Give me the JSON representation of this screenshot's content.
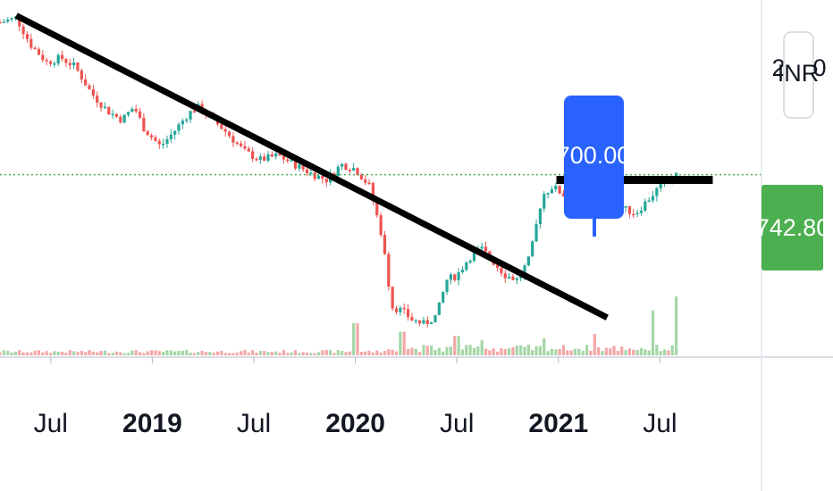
{
  "chart_data": {
    "type": "candlestick",
    "currency": "INR",
    "last_price": "742.80",
    "annotation_label": "700.00",
    "axis_label_partial_left": "2",
    "axis_label_partial_right": "0",
    "x_ticks": [
      {
        "label": "Jul",
        "t": 2018.5,
        "major": false
      },
      {
        "label": "2019",
        "t": 2019.0,
        "major": true
      },
      {
        "label": "Jul",
        "t": 2019.5,
        "major": false
      },
      {
        "label": "2020",
        "t": 2020.0,
        "major": true
      },
      {
        "label": "Jul",
        "t": 2020.5,
        "major": false
      },
      {
        "label": "2021",
        "t": 2021.0,
        "major": true
      },
      {
        "label": "Jul",
        "t": 2021.5,
        "major": false
      }
    ],
    "x_range": [
      2018.25,
      2022.0
    ],
    "y_range": [
      340,
      1120
    ],
    "price_path": [
      [
        2018.25,
        1090
      ],
      [
        2018.33,
        1100
      ],
      [
        2018.4,
        1040
      ],
      [
        2018.48,
        1000
      ],
      [
        2018.55,
        1010
      ],
      [
        2018.62,
        990
      ],
      [
        2018.7,
        930
      ],
      [
        2018.78,
        890
      ],
      [
        2018.85,
        870
      ],
      [
        2018.91,
        900
      ],
      [
        2018.96,
        850
      ],
      [
        2019.04,
        810
      ],
      [
        2019.1,
        840
      ],
      [
        2019.17,
        880
      ],
      [
        2019.22,
        900
      ],
      [
        2019.3,
        870
      ],
      [
        2019.37,
        840
      ],
      [
        2019.45,
        800
      ],
      [
        2019.53,
        780
      ],
      [
        2019.62,
        790
      ],
      [
        2019.7,
        770
      ],
      [
        2019.78,
        750
      ],
      [
        2019.86,
        735
      ],
      [
        2019.93,
        770
      ],
      [
        2020.0,
        760
      ],
      [
        2020.07,
        720
      ],
      [
        2020.13,
        610
      ],
      [
        2020.18,
        450
      ],
      [
        2020.23,
        440
      ],
      [
        2020.28,
        420
      ],
      [
        2020.34,
        410
      ],
      [
        2020.4,
        430
      ],
      [
        2020.45,
        510
      ],
      [
        2020.5,
        520
      ],
      [
        2020.56,
        560
      ],
      [
        2020.62,
        580
      ],
      [
        2020.68,
        550
      ],
      [
        2020.74,
        520
      ],
      [
        2020.8,
        510
      ],
      [
        2020.86,
        560
      ],
      [
        2020.92,
        700
      ],
      [
        2020.97,
        720
      ],
      [
        2021.03,
        700
      ],
      [
        2021.08,
        690
      ],
      [
        2021.14,
        710
      ],
      [
        2021.2,
        700
      ],
      [
        2021.26,
        690
      ],
      [
        2021.32,
        670
      ],
      [
        2021.38,
        660
      ],
      [
        2021.44,
        690
      ],
      [
        2021.5,
        720
      ],
      [
        2021.55,
        730
      ],
      [
        2021.58,
        742.8
      ]
    ],
    "trendlines": [
      {
        "from": [
          2018.33,
          1105
        ],
        "to": [
          2021.24,
          425
        ],
        "style": "descending-resistance"
      },
      {
        "from": [
          2020.99,
          735
        ],
        "to": [
          2021.76,
          735
        ],
        "style": "horizontal-resistance"
      }
    ],
    "volume_spikes": [
      {
        "t": 2020.0,
        "v": 0.3
      },
      {
        "t": 2020.23,
        "v": 0.22
      },
      {
        "t": 2020.5,
        "v": 0.18
      },
      {
        "t": 2020.63,
        "v": 0.14
      },
      {
        "t": 2020.93,
        "v": 0.16
      },
      {
        "t": 2021.18,
        "v": 0.2
      },
      {
        "t": 2021.46,
        "v": 0.42
      },
      {
        "t": 2021.58,
        "v": 0.55
      }
    ],
    "colors": {
      "up": "#26a69a",
      "down": "#ef5350",
      "up_volume": "#a5d6a7",
      "down_volume": "#f4a7a7",
      "trendline": "#000000",
      "price_label_bg": "#4caf50",
      "annotation_bg": "#2962ff",
      "last_price_line": "#4caf50"
    },
    "grid": false,
    "legend": "none"
  }
}
